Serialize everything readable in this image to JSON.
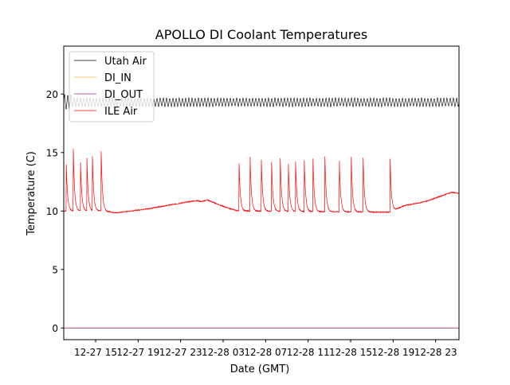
{
  "chart_data": {
    "type": "line",
    "title": "APOLLO DI Coolant Temperatures",
    "xlabel": "Date (GMT)",
    "ylabel": "Temperature (C)",
    "x_unit": "hours since 12-27 12:00 GMT",
    "xlim": [
      0,
      37.2
    ],
    "ylim": [
      -1.0,
      24.1
    ],
    "yticks": [
      0,
      5,
      10,
      15,
      20
    ],
    "xticks": [
      {
        "t": 3,
        "label": "12-27 15"
      },
      {
        "t": 7,
        "label": "12-27 19"
      },
      {
        "t": 11,
        "label": "12-27 23"
      },
      {
        "t": 15,
        "label": "12-28 03"
      },
      {
        "t": 19,
        "label": "12-28 07"
      },
      {
        "t": 23,
        "label": "12-28 11"
      },
      {
        "t": 27,
        "label": "12-28 15"
      },
      {
        "t": 31,
        "label": "12-28 19"
      },
      {
        "t": 35,
        "label": "12-28 23"
      }
    ],
    "grid": false,
    "legend_placement": "top-left",
    "series": [
      {
        "name": "Utah Air",
        "color": "#000000",
        "mean": 19.3,
        "amplitude": 0.35,
        "period_hours": 0.3
      },
      {
        "name": "DI_IN",
        "color": "#f0b24a",
        "constant": 0
      },
      {
        "name": "DI_OUT",
        "color": "#9b2a9b",
        "constant": 0
      },
      {
        "name": "ILE Air",
        "color": "#ff0000",
        "baseline": {
          "x": [
            0,
            3.6,
            5.0,
            8.0,
            10.5,
            12.5,
            13.0,
            13.5,
            15.0,
            16.4,
            30.7,
            32.0,
            34.0,
            36.5,
            37.2
          ],
          "y": [
            10.0,
            10.0,
            9.85,
            10.2,
            10.6,
            10.9,
            10.8,
            10.95,
            10.4,
            10.0,
            9.9,
            10.45,
            10.8,
            11.6,
            11.5
          ]
        },
        "spikes": [
          {
            "t": 0.22,
            "peak": 14.7
          },
          {
            "t": 0.9,
            "peak": 15.3
          },
          {
            "t": 1.57,
            "peak": 14.5
          },
          {
            "t": 2.17,
            "peak": 14.9
          },
          {
            "t": 2.7,
            "peak": 14.7
          },
          {
            "t": 3.52,
            "peak": 15.1
          },
          {
            "t": 16.48,
            "peak": 14.8
          },
          {
            "t": 17.53,
            "peak": 15.0
          },
          {
            "t": 18.58,
            "peak": 15.2
          },
          {
            "t": 19.55,
            "peak": 14.6
          },
          {
            "t": 20.37,
            "peak": 14.9
          },
          {
            "t": 21.12,
            "peak": 14.8
          },
          {
            "t": 21.8,
            "peak": 15.0
          },
          {
            "t": 22.62,
            "peak": 15.2
          },
          {
            "t": 23.45,
            "peak": 14.9
          },
          {
            "t": 24.57,
            "peak": 15.1
          },
          {
            "t": 25.92,
            "peak": 15.1
          },
          {
            "t": 27.04,
            "peak": 15.5
          },
          {
            "t": 28.16,
            "peak": 15.4
          },
          {
            "t": 30.71,
            "peak": 14.9
          }
        ]
      }
    ]
  }
}
